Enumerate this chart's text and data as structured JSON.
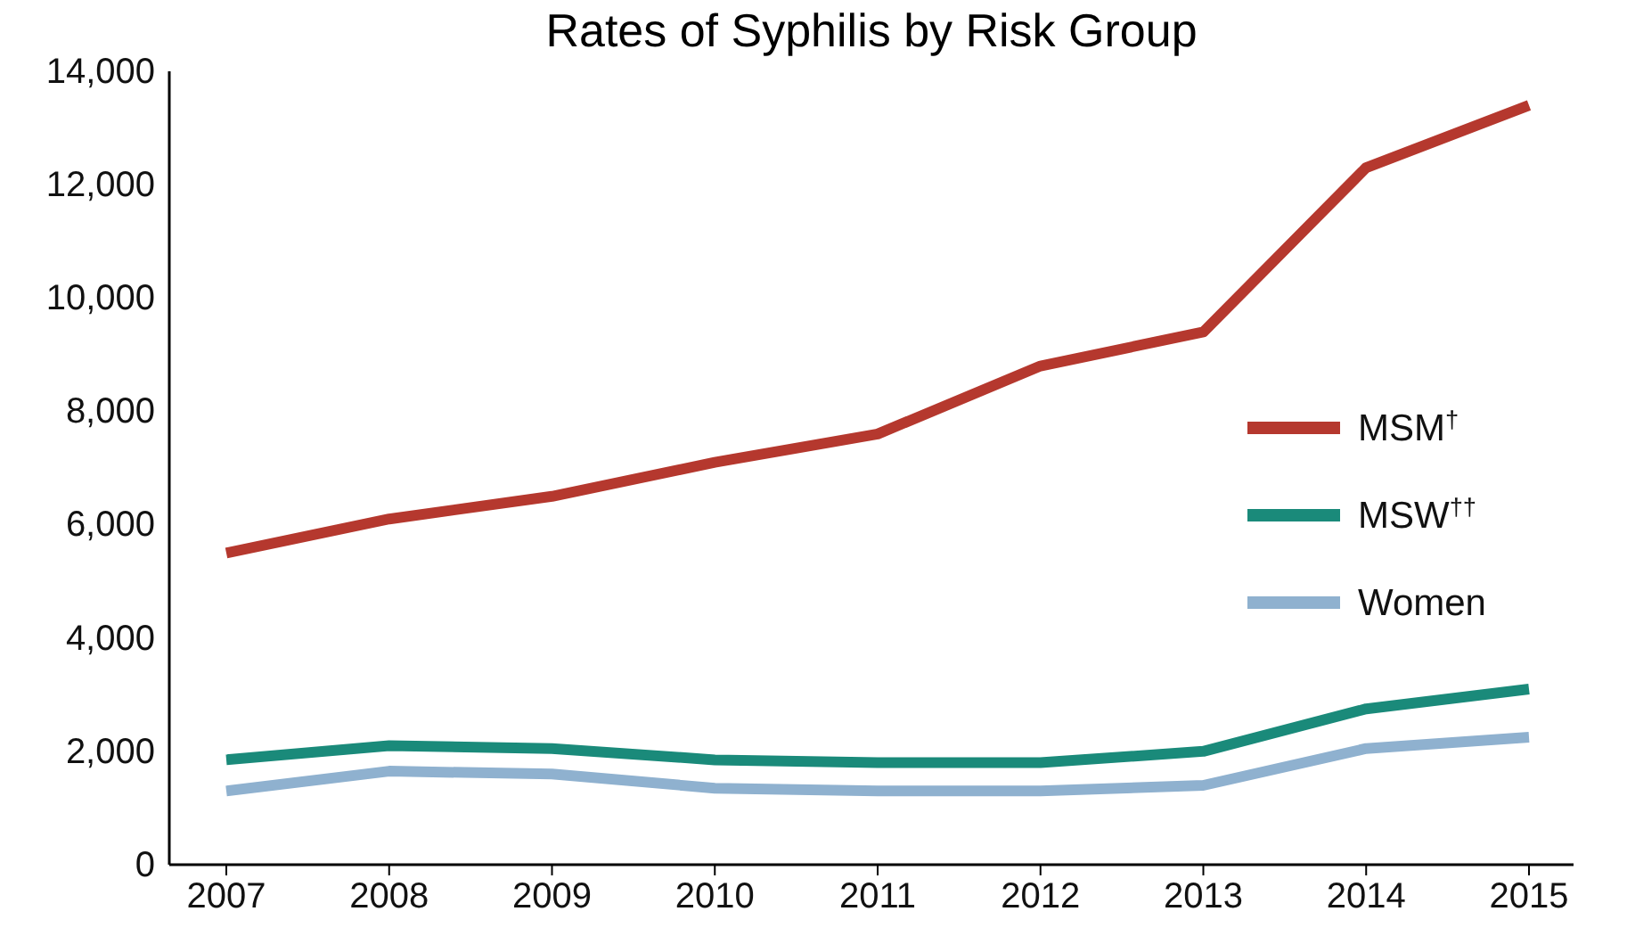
{
  "chart_data": {
    "type": "line",
    "title": "Rates of Syphilis by Risk Group",
    "categories": [
      "2007",
      "2008",
      "2009",
      "2010",
      "2011",
      "2012",
      "2013",
      "2014",
      "2015"
    ],
    "series": [
      {
        "name": "MSM$^{†}$",
        "color": "#b5382e",
        "values": [
          5500,
          6100,
          6500,
          7100,
          7600,
          8800,
          9400,
          12300,
          13400
        ]
      },
      {
        "name": "MSW$^{††}$",
        "color": "#1a8a7a",
        "values": [
          1850,
          2100,
          2050,
          1850,
          1800,
          1800,
          2000,
          2750,
          3100
        ]
      },
      {
        "name": "Women",
        "color": "#8fb1cf",
        "values": [
          1300,
          1650,
          1600,
          1350,
          1300,
          1300,
          1400,
          2050,
          2250
        ]
      }
    ],
    "ylim": [
      0,
      14000
    ],
    "yticks": [
      {
        "value": 0,
        "label": "0"
      },
      {
        "value": 2000,
        "label": "2,000"
      },
      {
        "value": 4000,
        "label": "4,000"
      },
      {
        "value": 6000,
        "label": "6,000"
      },
      {
        "value": 8000,
        "label": "8,000"
      },
      {
        "value": 10000,
        "label": "10,000"
      },
      {
        "value": 12000,
        "label": "12,000"
      },
      {
        "value": 14000,
        "label": "14,000"
      }
    ],
    "grid": false,
    "legend": "right",
    "marker": "none",
    "line_style": "solid"
  }
}
